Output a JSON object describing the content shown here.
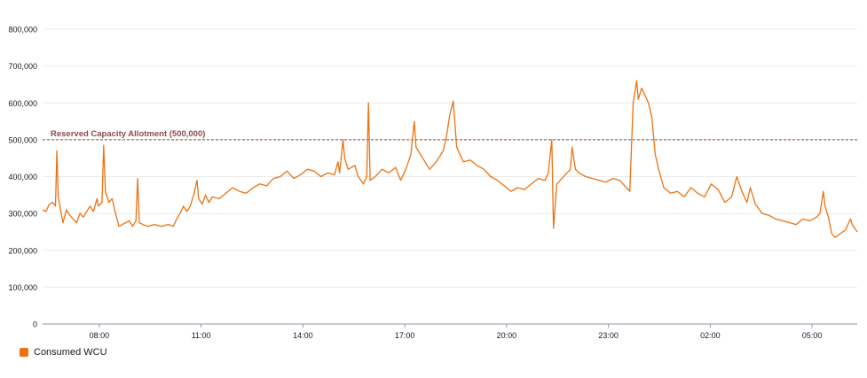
{
  "chart_data": {
    "type": "line",
    "title": "",
    "xlabel": "",
    "ylabel": "",
    "ylim": [
      0,
      800000
    ],
    "yticks": [
      0,
      100000,
      200000,
      300000,
      400000,
      500000,
      600000,
      700000,
      800000
    ],
    "ytick_labels": [
      "0",
      "100,000",
      "200,000",
      "300,000",
      "400,000",
      "500,000",
      "600,000",
      "700,000",
      "800,000"
    ],
    "x_unit": "hours elapsed",
    "xlim": [
      0,
      24
    ],
    "xticks": [
      {
        "x": 1.67,
        "label": "08:00"
      },
      {
        "x": 4.67,
        "label": "11:00"
      },
      {
        "x": 7.67,
        "label": "14:00"
      },
      {
        "x": 10.67,
        "label": "17:00"
      },
      {
        "x": 13.67,
        "label": "20:00"
      },
      {
        "x": 16.67,
        "label": "23:00"
      },
      {
        "x": 19.67,
        "label": "02:00"
      },
      {
        "x": 22.67,
        "label": "05:00"
      }
    ],
    "grid": true,
    "reference_line": {
      "value": 500000,
      "label": "Reserved Capacity Allotment (500,000)",
      "color": "#8c4a4a"
    },
    "series": [
      {
        "name": "Consumed WCU",
        "color": "#ec7211",
        "points": [
          [
            0.0,
            310000
          ],
          [
            0.1,
            305000
          ],
          [
            0.2,
            325000
          ],
          [
            0.3,
            330000
          ],
          [
            0.38,
            320000
          ],
          [
            0.42,
            470000
          ],
          [
            0.46,
            345000
          ],
          [
            0.55,
            300000
          ],
          [
            0.6,
            275000
          ],
          [
            0.7,
            310000
          ],
          [
            0.8,
            295000
          ],
          [
            0.9,
            285000
          ],
          [
            1.0,
            275000
          ],
          [
            1.1,
            300000
          ],
          [
            1.2,
            290000
          ],
          [
            1.3,
            305000
          ],
          [
            1.4,
            320000
          ],
          [
            1.5,
            305000
          ],
          [
            1.6,
            340000
          ],
          [
            1.65,
            320000
          ],
          [
            1.75,
            330000
          ],
          [
            1.8,
            485000
          ],
          [
            1.85,
            360000
          ],
          [
            1.95,
            330000
          ],
          [
            2.05,
            340000
          ],
          [
            2.15,
            300000
          ],
          [
            2.25,
            265000
          ],
          [
            2.35,
            270000
          ],
          [
            2.45,
            275000
          ],
          [
            2.55,
            280000
          ],
          [
            2.65,
            265000
          ],
          [
            2.75,
            280000
          ],
          [
            2.8,
            395000
          ],
          [
            2.85,
            275000
          ],
          [
            2.95,
            270000
          ],
          [
            3.1,
            265000
          ],
          [
            3.3,
            270000
          ],
          [
            3.5,
            265000
          ],
          [
            3.7,
            270000
          ],
          [
            3.85,
            265000
          ],
          [
            3.95,
            285000
          ],
          [
            4.05,
            300000
          ],
          [
            4.15,
            320000
          ],
          [
            4.25,
            305000
          ],
          [
            4.35,
            320000
          ],
          [
            4.45,
            350000
          ],
          [
            4.55,
            390000
          ],
          [
            4.6,
            340000
          ],
          [
            4.7,
            325000
          ],
          [
            4.8,
            350000
          ],
          [
            4.9,
            330000
          ],
          [
            5.0,
            345000
          ],
          [
            5.2,
            340000
          ],
          [
            5.4,
            355000
          ],
          [
            5.6,
            370000
          ],
          [
            5.8,
            360000
          ],
          [
            6.0,
            355000
          ],
          [
            6.2,
            370000
          ],
          [
            6.4,
            380000
          ],
          [
            6.6,
            375000
          ],
          [
            6.8,
            395000
          ],
          [
            7.0,
            400000
          ],
          [
            7.2,
            415000
          ],
          [
            7.4,
            395000
          ],
          [
            7.6,
            405000
          ],
          [
            7.8,
            420000
          ],
          [
            8.0,
            415000
          ],
          [
            8.2,
            400000
          ],
          [
            8.4,
            410000
          ],
          [
            8.6,
            405000
          ],
          [
            8.7,
            440000
          ],
          [
            8.75,
            410000
          ],
          [
            8.85,
            500000
          ],
          [
            8.9,
            450000
          ],
          [
            9.0,
            420000
          ],
          [
            9.2,
            430000
          ],
          [
            9.3,
            400000
          ],
          [
            9.45,
            380000
          ],
          [
            9.55,
            400000
          ],
          [
            9.6,
            600000
          ],
          [
            9.65,
            390000
          ],
          [
            9.8,
            400000
          ],
          [
            10.0,
            420000
          ],
          [
            10.2,
            410000
          ],
          [
            10.4,
            425000
          ],
          [
            10.55,
            390000
          ],
          [
            10.7,
            420000
          ],
          [
            10.85,
            460000
          ],
          [
            10.95,
            550000
          ],
          [
            11.0,
            480000
          ],
          [
            11.2,
            450000
          ],
          [
            11.4,
            420000
          ],
          [
            11.6,
            440000
          ],
          [
            11.8,
            470000
          ],
          [
            11.9,
            510000
          ],
          [
            12.0,
            570000
          ],
          [
            12.1,
            605000
          ],
          [
            12.2,
            480000
          ],
          [
            12.4,
            440000
          ],
          [
            12.6,
            445000
          ],
          [
            12.8,
            430000
          ],
          [
            13.0,
            420000
          ],
          [
            13.2,
            400000
          ],
          [
            13.4,
            390000
          ],
          [
            13.6,
            375000
          ],
          [
            13.8,
            360000
          ],
          [
            14.0,
            370000
          ],
          [
            14.2,
            365000
          ],
          [
            14.4,
            380000
          ],
          [
            14.6,
            395000
          ],
          [
            14.8,
            390000
          ],
          [
            14.9,
            410000
          ],
          [
            15.0,
            500000
          ],
          [
            15.05,
            260000
          ],
          [
            15.15,
            380000
          ],
          [
            15.3,
            395000
          ],
          [
            15.45,
            410000
          ],
          [
            15.55,
            420000
          ],
          [
            15.6,
            480000
          ],
          [
            15.7,
            420000
          ],
          [
            15.8,
            410000
          ],
          [
            16.0,
            400000
          ],
          [
            16.2,
            395000
          ],
          [
            16.4,
            390000
          ],
          [
            16.6,
            385000
          ],
          [
            16.8,
            395000
          ],
          [
            17.0,
            390000
          ],
          [
            17.2,
            370000
          ],
          [
            17.3,
            360000
          ],
          [
            17.4,
            600000
          ],
          [
            17.5,
            660000
          ],
          [
            17.55,
            610000
          ],
          [
            17.65,
            640000
          ],
          [
            17.75,
            620000
          ],
          [
            17.85,
            600000
          ],
          [
            17.95,
            560000
          ],
          [
            18.05,
            460000
          ],
          [
            18.15,
            420000
          ],
          [
            18.3,
            370000
          ],
          [
            18.5,
            355000
          ],
          [
            18.7,
            360000
          ],
          [
            18.9,
            345000
          ],
          [
            19.1,
            370000
          ],
          [
            19.3,
            355000
          ],
          [
            19.5,
            345000
          ],
          [
            19.7,
            380000
          ],
          [
            19.9,
            365000
          ],
          [
            20.1,
            330000
          ],
          [
            20.3,
            345000
          ],
          [
            20.45,
            400000
          ],
          [
            20.6,
            360000
          ],
          [
            20.75,
            330000
          ],
          [
            20.85,
            370000
          ],
          [
            21.0,
            325000
          ],
          [
            21.2,
            300000
          ],
          [
            21.4,
            295000
          ],
          [
            21.6,
            285000
          ],
          [
            21.8,
            280000
          ],
          [
            22.0,
            275000
          ],
          [
            22.2,
            270000
          ],
          [
            22.4,
            285000
          ],
          [
            22.6,
            280000
          ],
          [
            22.8,
            290000
          ],
          [
            22.9,
            300000
          ],
          [
            23.0,
            360000
          ],
          [
            23.05,
            320000
          ],
          [
            23.15,
            290000
          ],
          [
            23.25,
            245000
          ],
          [
            23.35,
            235000
          ],
          [
            23.5,
            245000
          ],
          [
            23.65,
            255000
          ],
          [
            23.8,
            285000
          ],
          [
            23.85,
            270000
          ],
          [
            24.0,
            250000
          ]
        ]
      }
    ]
  }
}
